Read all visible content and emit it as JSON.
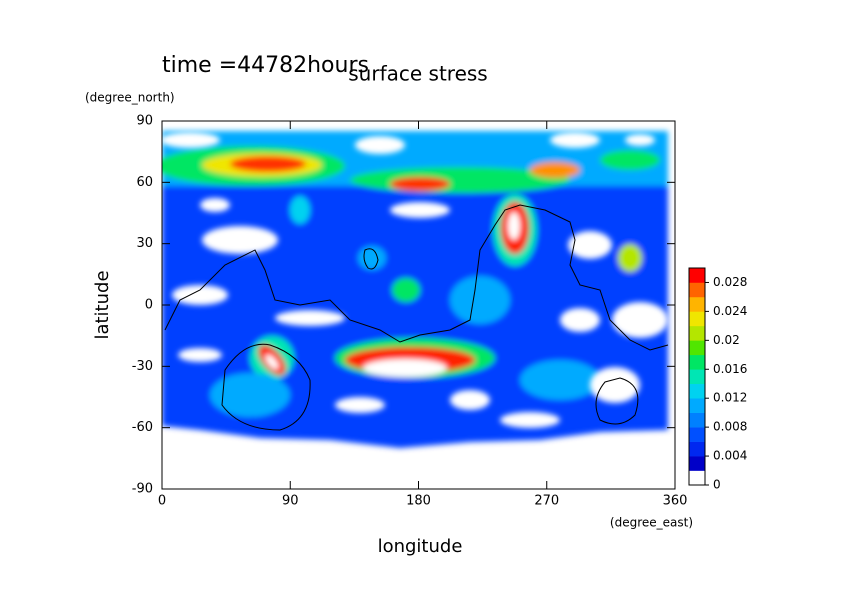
{
  "chart_data": {
    "type": "contour",
    "title": "surface stress",
    "annotation": "time =44782hours",
    "x_label": "longitude",
    "y_label": "latitude",
    "x_units": "(degree_east)",
    "y_units": "(degree_north)",
    "xlim": [
      0,
      360
    ],
    "xticks": [
      0,
      90,
      180,
      270,
      360
    ],
    "ylim": [
      -90,
      90
    ],
    "yticks": [
      -90,
      -60,
      -30,
      0,
      30,
      60,
      90
    ],
    "clim": [
      0,
      0.03
    ],
    "cticks": [
      0,
      0.004,
      0.008,
      0.012,
      0.016,
      0.02,
      0.024,
      0.028
    ],
    "colors": [
      "#ffffff",
      "#0000c8",
      "#0028f0",
      "#0050ff",
      "#0080ff",
      "#00aaff",
      "#00d2f0",
      "#00e6b4",
      "#00e664",
      "#50e600",
      "#b4e600",
      "#f0e600",
      "#ffb400",
      "#ff6400",
      "#ff0000"
    ]
  }
}
